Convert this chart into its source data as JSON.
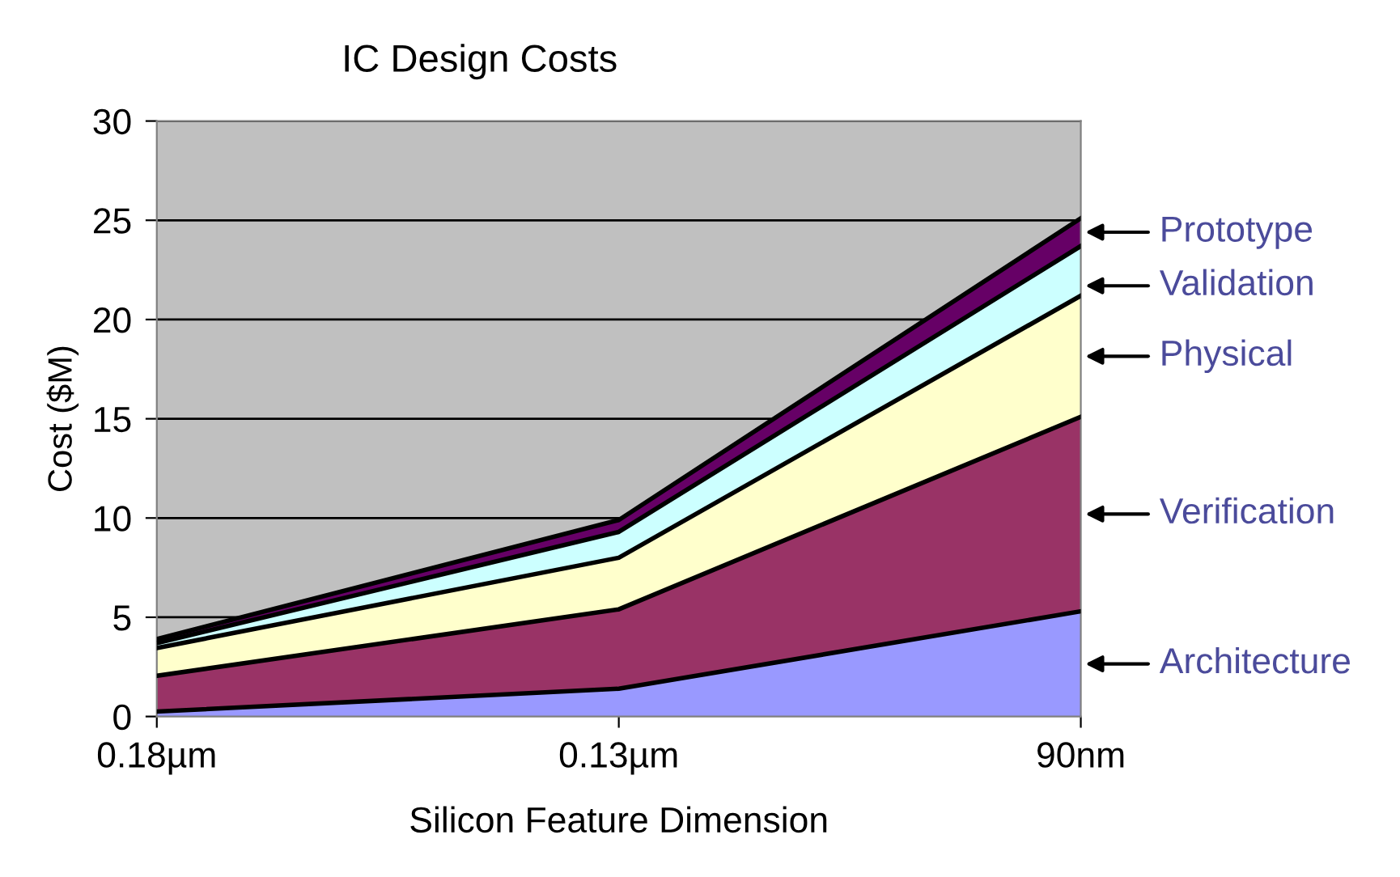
{
  "chart_data": {
    "type": "area",
    "stacked": true,
    "title": "IC Design Costs",
    "xlabel": "Silicon Feature Dimension",
    "ylabel": "Cost ($M)",
    "categories": [
      "0.18µm",
      "0.13µm",
      "90nm"
    ],
    "series": [
      {
        "name": "Architecture",
        "color": "#9999ff",
        "values": [
          0.25,
          1.4,
          5.3
        ]
      },
      {
        "name": "Verification",
        "color": "#993366",
        "values": [
          1.8,
          4.0,
          9.8
        ]
      },
      {
        "name": "Physical",
        "color": "#ffffcc",
        "values": [
          1.4,
          2.6,
          6.1
        ]
      },
      {
        "name": "Validation",
        "color": "#ccffff",
        "values": [
          0.25,
          1.3,
          2.5
        ]
      },
      {
        "name": "Prototype",
        "color": "#660066",
        "values": [
          0.2,
          0.6,
          1.4
        ]
      }
    ],
    "ylim": [
      0,
      30
    ],
    "yticks": [
      0,
      5,
      10,
      15,
      20,
      25,
      30
    ],
    "grid": "y",
    "legend": "right"
  }
}
